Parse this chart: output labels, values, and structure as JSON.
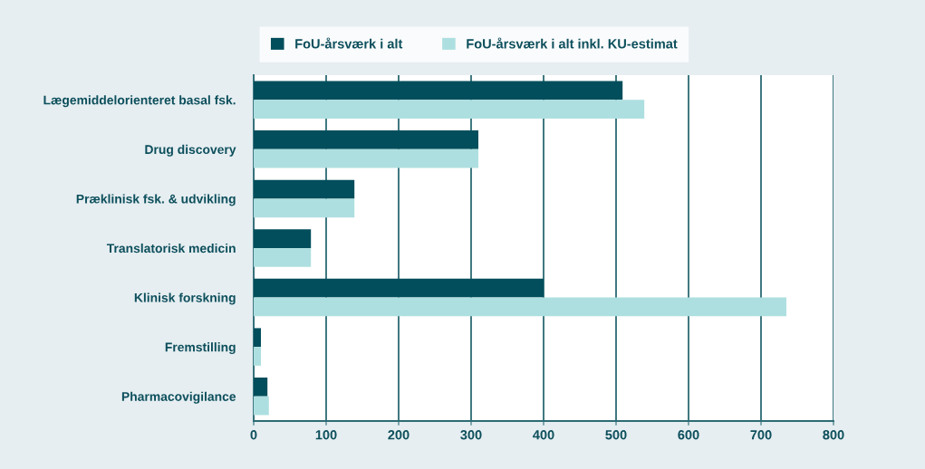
{
  "chart_data": {
    "type": "bar",
    "orientation": "horizontal",
    "categories": [
      "Lægemiddelorienteret basal fsk.",
      "Drug discovery",
      "Præklinisk fsk. & udvikling",
      "Translatorisk medicin",
      "Klinisk forskning",
      "Fremstilling",
      "Pharmacovigilance"
    ],
    "series": [
      {
        "name": "FoU-årsværk i alt",
        "color": "#024e5c",
        "values": [
          509,
          310,
          139,
          79,
          400,
          10,
          19
        ]
      },
      {
        "name": "FoU-årsværk i alt inkl. KU-estimat",
        "color": "#aedfe0",
        "values": [
          539,
          310,
          139,
          79,
          735,
          10,
          21
        ]
      }
    ],
    "xlim": [
      0,
      800
    ],
    "xticks": [
      0,
      100,
      200,
      300,
      400,
      500,
      600,
      700,
      800
    ],
    "grid": "x",
    "legend": "top"
  }
}
